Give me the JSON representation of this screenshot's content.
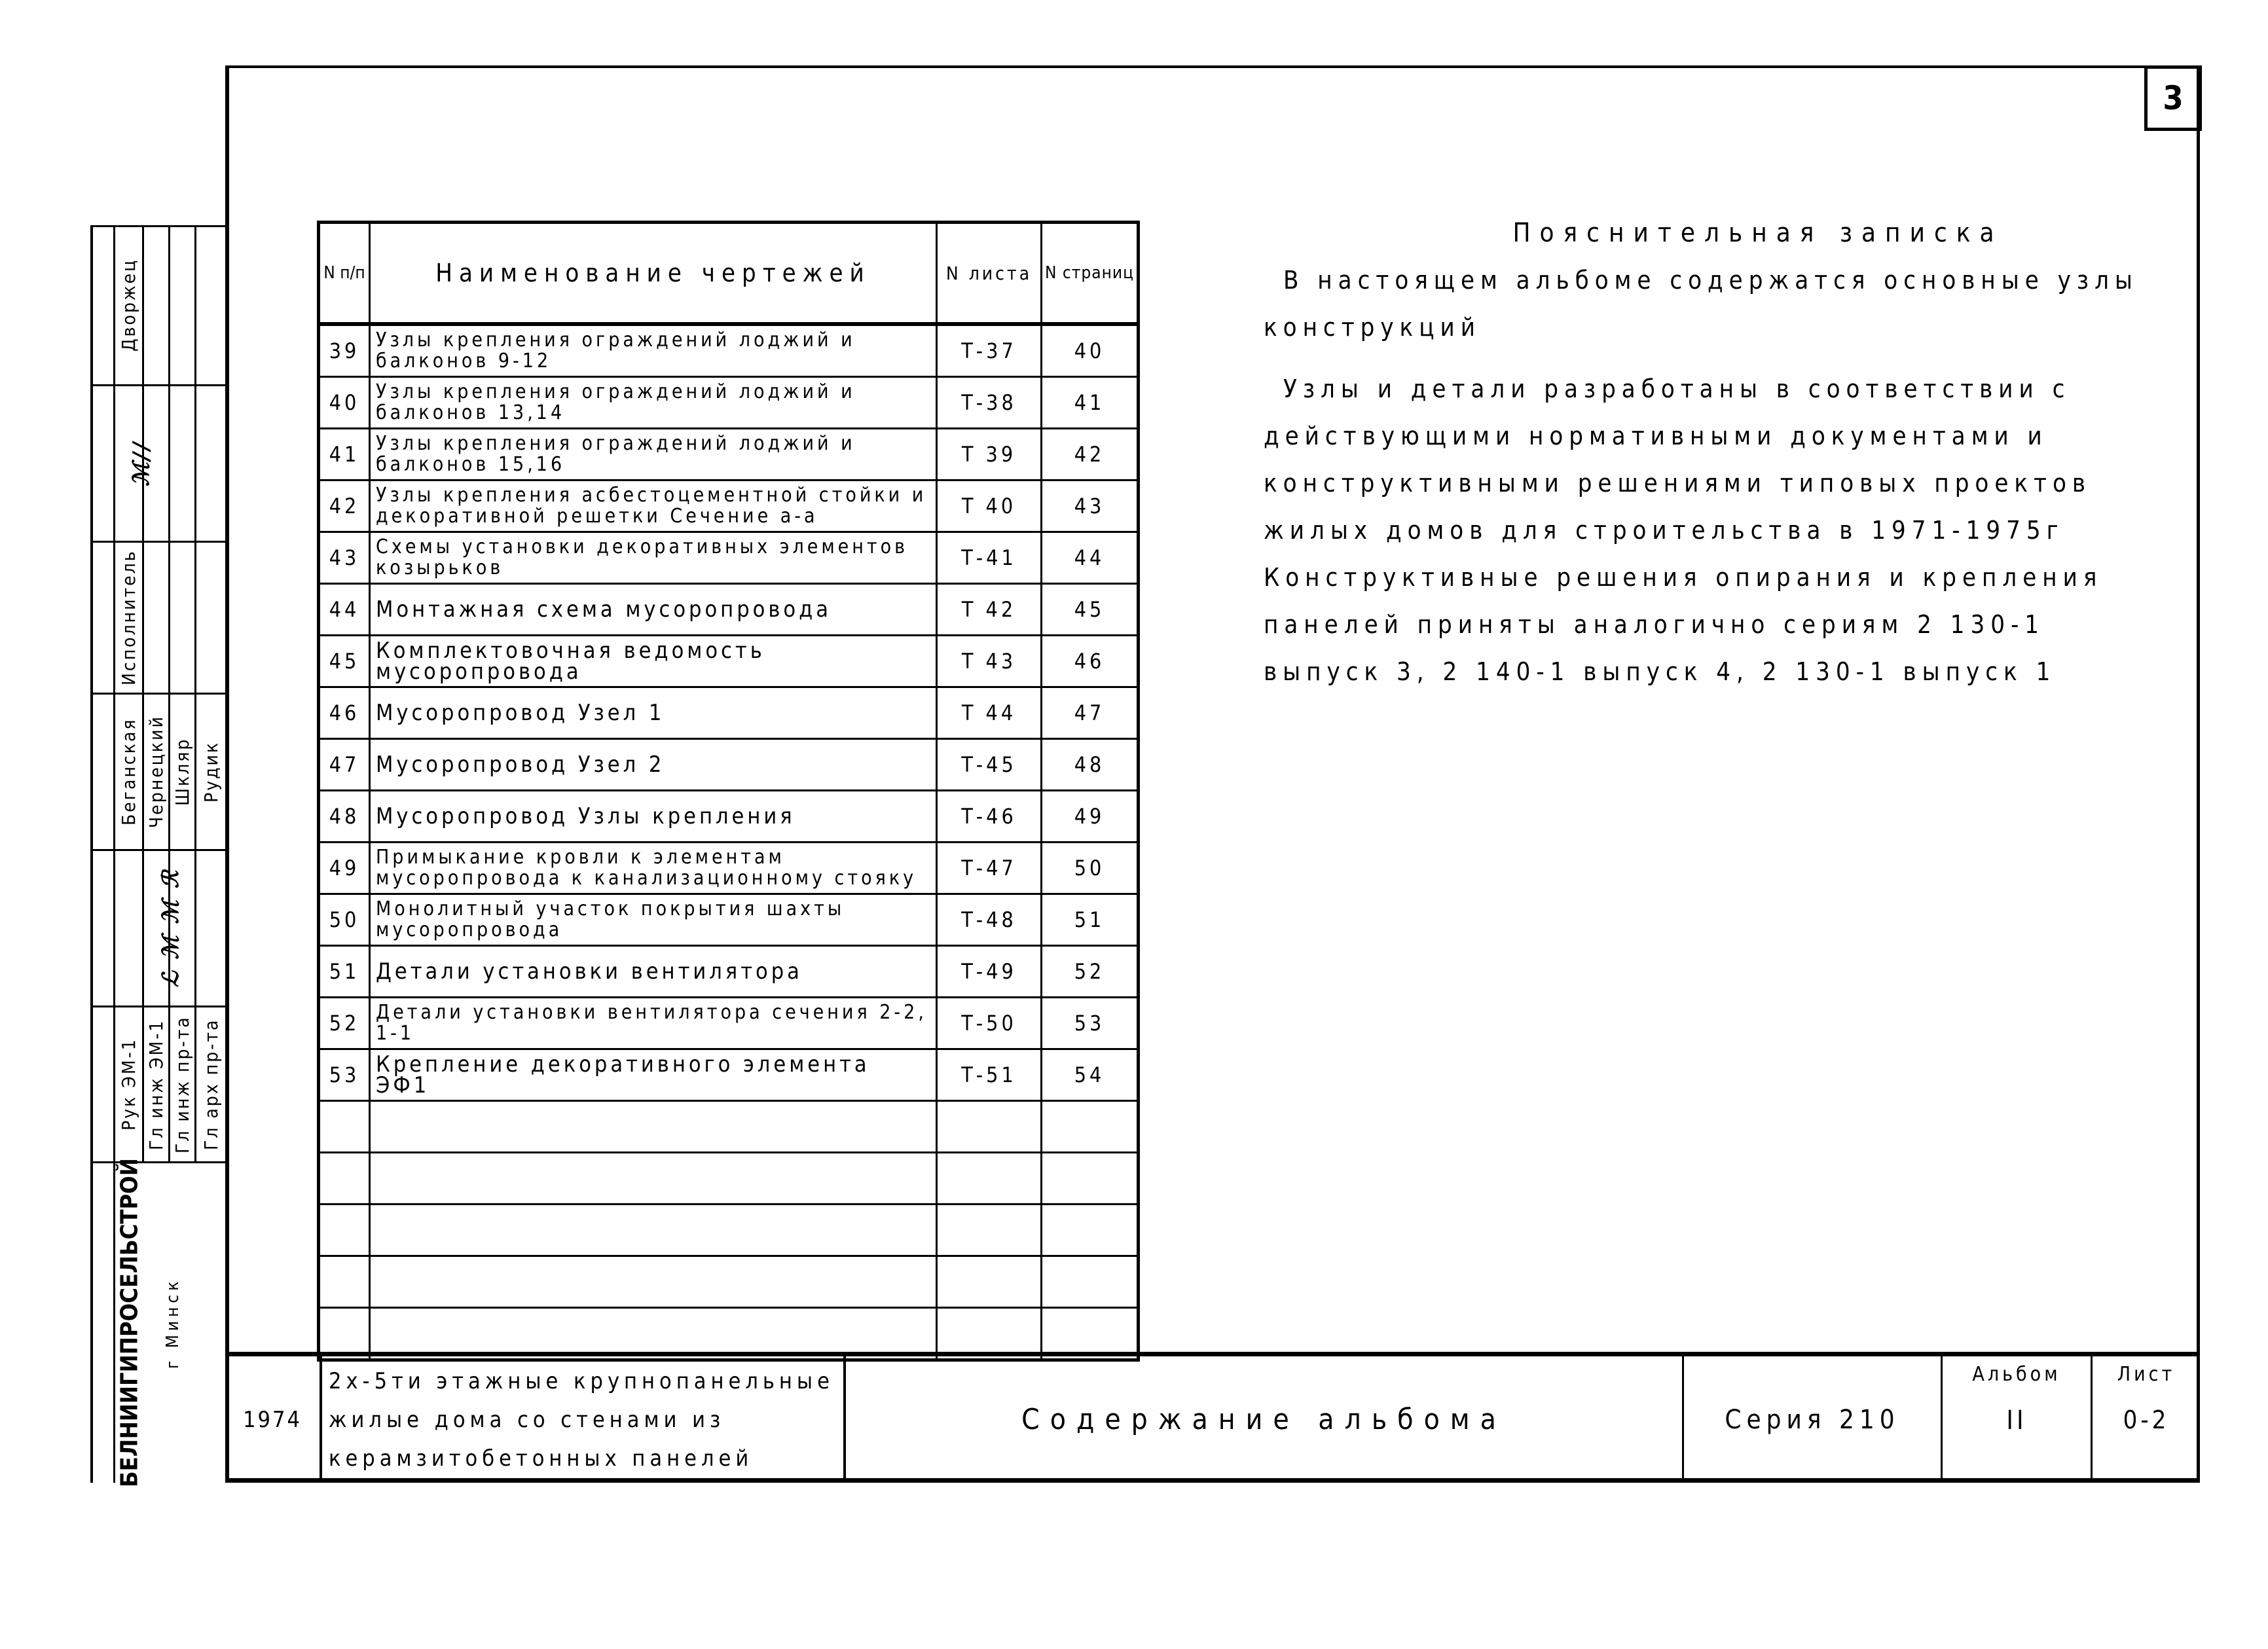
{
  "page_number": "3",
  "toc": {
    "headers": {
      "num": "N п/п",
      "name": "Наименование чертежей",
      "sheet": "N листа",
      "page": "N страниц"
    },
    "rows": [
      {
        "num": "39",
        "name": "Узлы крепления ограждений лоджий и балконов 9-12",
        "sheet": "Т-37",
        "page": "40"
      },
      {
        "num": "40",
        "name": "Узлы крепления ограждений лоджий и балконов 13,14",
        "sheet": "Т-38",
        "page": "41"
      },
      {
        "num": "41",
        "name": "Узлы крепления ограждений лоджий и балконов 15,16",
        "sheet": "Т 39",
        "page": "42"
      },
      {
        "num": "42",
        "name": "Узлы крепления асбестоцементной стойки и декоративной решетки Сечение а-а",
        "sheet": "Т 40",
        "page": "43"
      },
      {
        "num": "43",
        "name": "Схемы установки декоративных элементов козырьков",
        "sheet": "Т-41",
        "page": "44"
      },
      {
        "num": "44",
        "name": "Монтажная схема мусоропровода",
        "sheet": "Т 42",
        "page": "45"
      },
      {
        "num": "45",
        "name": "Комплектовочная ведомость мусоропровода",
        "sheet": "Т 43",
        "page": "46"
      },
      {
        "num": "46",
        "name": "Мусоропровод Узел 1",
        "sheet": "Т 44",
        "page": "47"
      },
      {
        "num": "47",
        "name": "Мусоропровод Узел 2",
        "sheet": "Т-45",
        "page": "48"
      },
      {
        "num": "48",
        "name": "Мусоропровод Узлы крепления",
        "sheet": "Т-46",
        "page": "49"
      },
      {
        "num": "49",
        "name": "Примыкание кровли к элементам мусоропровода к канализационному стояку",
        "sheet": "Т-47",
        "page": "50"
      },
      {
        "num": "50",
        "name": "Монолитный участок покрытия шахты мусоропровода",
        "sheet": "Т-48",
        "page": "51"
      },
      {
        "num": "51",
        "name": "Детали установки вентилятора",
        "sheet": "Т-49",
        "page": "52"
      },
      {
        "num": "52",
        "name": "Детали установки вентилятора сечения 2-2, 1-1",
        "sheet": "Т-50",
        "page": "53"
      },
      {
        "num": "53",
        "name": "Крепление декоративного элемента ЭФ1",
        "sheet": "Т-51",
        "page": "54"
      }
    ],
    "empty_rows": 5
  },
  "note": {
    "title": "Пояснительная записка",
    "paragraphs": [
      "В настоящем альбоме содержатся основные узлы конструкций",
      "Узлы и детали разработаны в соответствии с действующими нормативными документами и конструктивными решениями типовых проектов жилых домов для строительства в 1971-1975г Конструктивные решения опирания и крепления панелей приняты аналогично сериям 2 130-1 выпуск 3, 2 140-1 выпуск 4, 2 130-1 выпуск 1"
    ]
  },
  "stamp": {
    "org": "БЕЛНИИГИПРОСЕЛЬСТРОЙ",
    "city": "г Минск",
    "author_name": "Дворжец",
    "author_role": "Исполнитель",
    "names": [
      "Беганская",
      "Чернецкий",
      "Шкляр",
      "Рудик"
    ],
    "roles": [
      "Рук ЭМ-1",
      "Гл инж ЭМ-1",
      "Гл инж пр-та",
      "Гл арх пр-та"
    ]
  },
  "title_block": {
    "year": "1974",
    "project": [
      "2х-5ти этажные крупнопанельные",
      "жилые дома со стенами из",
      "керамзитобетонных панелей"
    ],
    "sheet_title": "Содержание альбома",
    "series": "Серия 210",
    "album_label": "Альбом",
    "album_value": "II",
    "sheet_label": "Лист",
    "sheet_value": "0-2"
  }
}
